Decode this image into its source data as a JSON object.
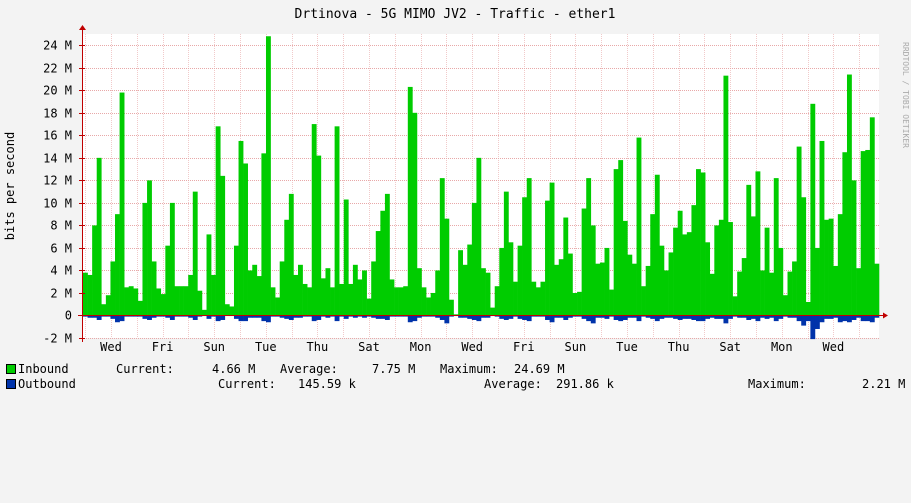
{
  "chart_data": {
    "type": "area",
    "title": "Drtinova - 5G MIMO JV2 - Traffic - ether1",
    "ylabel": "bits per second",
    "watermark": "RRDTOOL / TOBI OETIKER",
    "ylim": [
      -2000000,
      25000000
    ],
    "grid": true,
    "y_ticks": [
      {
        "value": -2000000,
        "label": "-2 M"
      },
      {
        "value": 0,
        "label": "0"
      },
      {
        "value": 2000000,
        "label": "2 M"
      },
      {
        "value": 4000000,
        "label": "4 M"
      },
      {
        "value": 6000000,
        "label": "6 M"
      },
      {
        "value": 8000000,
        "label": "8 M"
      },
      {
        "value": 10000000,
        "label": "10 M"
      },
      {
        "value": 12000000,
        "label": "12 M"
      },
      {
        "value": 14000000,
        "label": "14 M"
      },
      {
        "value": 16000000,
        "label": "16 M"
      },
      {
        "value": 18000000,
        "label": "18 M"
      },
      {
        "value": 20000000,
        "label": "20 M"
      },
      {
        "value": 22000000,
        "label": "22 M"
      },
      {
        "value": 24000000,
        "label": "24 M"
      }
    ],
    "x_ticks": [
      "Wed",
      "Fri",
      "Sun",
      "Tue",
      "Thu",
      "Sat",
      "Mon",
      "Wed",
      "Fri",
      "Sun",
      "Tue",
      "Thu",
      "Sat",
      "Mon",
      "Wed"
    ],
    "colors": {
      "inbound": "#00cc00",
      "inbound_edge": "#009900",
      "outbound": "#0033aa",
      "grid": "#e8a8a8",
      "axis": "#c00000",
      "background": "#ffffff",
      "canvas": "#f3f3f3"
    },
    "series": [
      {
        "name": "Inbound",
        "values": [
          3.8,
          3.6,
          8.0,
          14.0,
          1.0,
          1.8,
          4.8,
          9.0,
          19.8,
          2.5,
          2.6,
          2.4,
          1.3,
          10.0,
          12.0,
          4.8,
          2.4,
          1.9,
          6.2,
          10.0,
          2.6,
          2.6,
          2.6,
          3.6,
          11.0,
          2.2,
          0.5,
          7.2,
          3.6,
          16.8,
          12.4,
          1.0,
          0.8,
          6.2,
          15.5,
          13.5,
          4.0,
          4.5,
          3.5,
          14.4,
          24.8,
          2.5,
          1.6,
          4.8,
          8.5,
          10.8,
          3.6,
          4.5,
          2.8,
          2.5,
          17.0,
          14.2,
          3.3,
          4.2,
          2.5,
          16.8,
          2.8,
          10.3,
          2.8,
          4.5,
          3.2,
          4.0,
          1.5,
          4.8,
          7.5,
          9.3,
          10.8,
          3.2,
          2.5,
          2.5,
          2.6,
          20.3,
          18.0,
          4.2,
          2.5,
          1.6,
          2.0,
          4.0,
          12.2,
          8.6,
          1.4,
          0.1,
          5.8,
          4.5,
          6.3,
          10.0,
          14.0,
          4.2,
          3.8,
          0.7,
          2.6,
          6.0,
          11.0,
          6.5,
          3.0,
          6.2,
          10.5,
          12.2,
          3.0,
          2.5,
          3.0,
          10.2,
          11.8,
          4.5,
          5.0,
          8.7,
          5.5,
          2.0,
          2.1,
          9.5,
          12.2,
          8.0,
          4.6,
          4.7,
          6.0,
          2.3,
          13.0,
          13.8,
          8.4,
          5.4,
          4.6,
          15.8,
          2.6,
          4.4,
          9.0,
          12.5,
          6.2,
          4.0,
          5.6,
          7.8,
          9.3,
          7.2,
          7.4,
          9.8,
          13.0,
          12.7,
          6.5,
          3.7,
          8.0,
          8.5,
          21.3,
          8.3,
          1.7,
          3.9,
          5.1,
          11.6,
          8.8,
          12.8,
          4.0,
          7.8,
          3.8,
          12.2,
          6.0,
          1.8,
          3.9,
          4.8,
          15.0,
          10.5,
          1.2,
          18.8,
          6.0,
          15.5,
          8.5,
          8.6,
          4.4,
          9.0,
          14.5,
          21.4,
          12.0,
          4.2,
          14.6,
          14.7,
          17.6,
          4.6
        ]
      },
      {
        "name": "Outbound",
        "values": [
          -0.1,
          -0.2,
          -0.2,
          -0.4,
          -0.1,
          -0.1,
          -0.3,
          -0.6,
          -0.5,
          -0.1,
          -0.1,
          -0.1,
          -0.1,
          -0.3,
          -0.4,
          -0.2,
          -0.1,
          -0.1,
          -0.2,
          -0.4,
          -0.1,
          -0.1,
          -0.1,
          -0.2,
          -0.4,
          -0.1,
          -0.05,
          -0.3,
          -0.1,
          -0.5,
          -0.4,
          -0.05,
          -0.05,
          -0.3,
          -0.5,
          -0.5,
          -0.2,
          -0.2,
          -0.2,
          -0.5,
          -0.6,
          -0.1,
          -0.1,
          -0.2,
          -0.3,
          -0.4,
          -0.2,
          -0.2,
          -0.1,
          -0.1,
          -0.5,
          -0.4,
          -0.1,
          -0.2,
          -0.1,
          -0.5,
          -0.1,
          -0.3,
          -0.1,
          -0.2,
          -0.1,
          -0.2,
          -0.1,
          -0.2,
          -0.3,
          -0.3,
          -0.4,
          -0.1,
          -0.1,
          -0.1,
          -0.1,
          -0.6,
          -0.5,
          -0.2,
          -0.1,
          -0.1,
          -0.1,
          -0.2,
          -0.4,
          -0.7,
          -0.1,
          -0.05,
          -0.2,
          -0.2,
          -0.3,
          -0.4,
          -0.5,
          -0.2,
          -0.2,
          -0.05,
          -0.1,
          -0.3,
          -0.4,
          -0.3,
          -0.1,
          -0.3,
          -0.4,
          -0.5,
          -0.1,
          -0.1,
          -0.1,
          -0.4,
          -0.6,
          -0.2,
          -0.2,
          -0.4,
          -0.2,
          -0.1,
          -0.1,
          -0.3,
          -0.5,
          -0.7,
          -0.2,
          -0.2,
          -0.3,
          -0.1,
          -0.4,
          -0.5,
          -0.4,
          -0.2,
          -0.2,
          -0.5,
          -0.1,
          -0.2,
          -0.3,
          -0.5,
          -0.3,
          -0.2,
          -0.2,
          -0.3,
          -0.4,
          -0.3,
          -0.3,
          -0.4,
          -0.5,
          -0.5,
          -0.3,
          -0.2,
          -0.3,
          -0.3,
          -0.7,
          -0.3,
          -0.1,
          -0.2,
          -0.2,
          -0.4,
          -0.3,
          -0.5,
          -0.2,
          -0.3,
          -0.2,
          -0.5,
          -0.3,
          -0.1,
          -0.2,
          -0.2,
          -0.5,
          -0.9,
          -0.5,
          -2.1,
          -1.2,
          -0.6,
          -0.3,
          -0.3,
          -0.2,
          -0.6,
          -0.5,
          -0.6,
          -0.4,
          -0.2,
          -0.5,
          -0.5,
          -0.6,
          -0.2
        ]
      }
    ],
    "legend": {
      "inbound": {
        "label": "Inbound",
        "current_label": "Current:",
        "current": "4.66 M",
        "average_label": "Average:",
        "average": "7.75 M",
        "maximum_label": "Maximum:",
        "maximum": "24.69 M"
      },
      "outbound": {
        "label": "Outbound",
        "current_label": "Current:",
        "current": "145.59 k",
        "average_label": "Average:",
        "average": "291.86 k",
        "maximum_label": "Maximum:",
        "maximum": "2.21 M"
      }
    }
  }
}
